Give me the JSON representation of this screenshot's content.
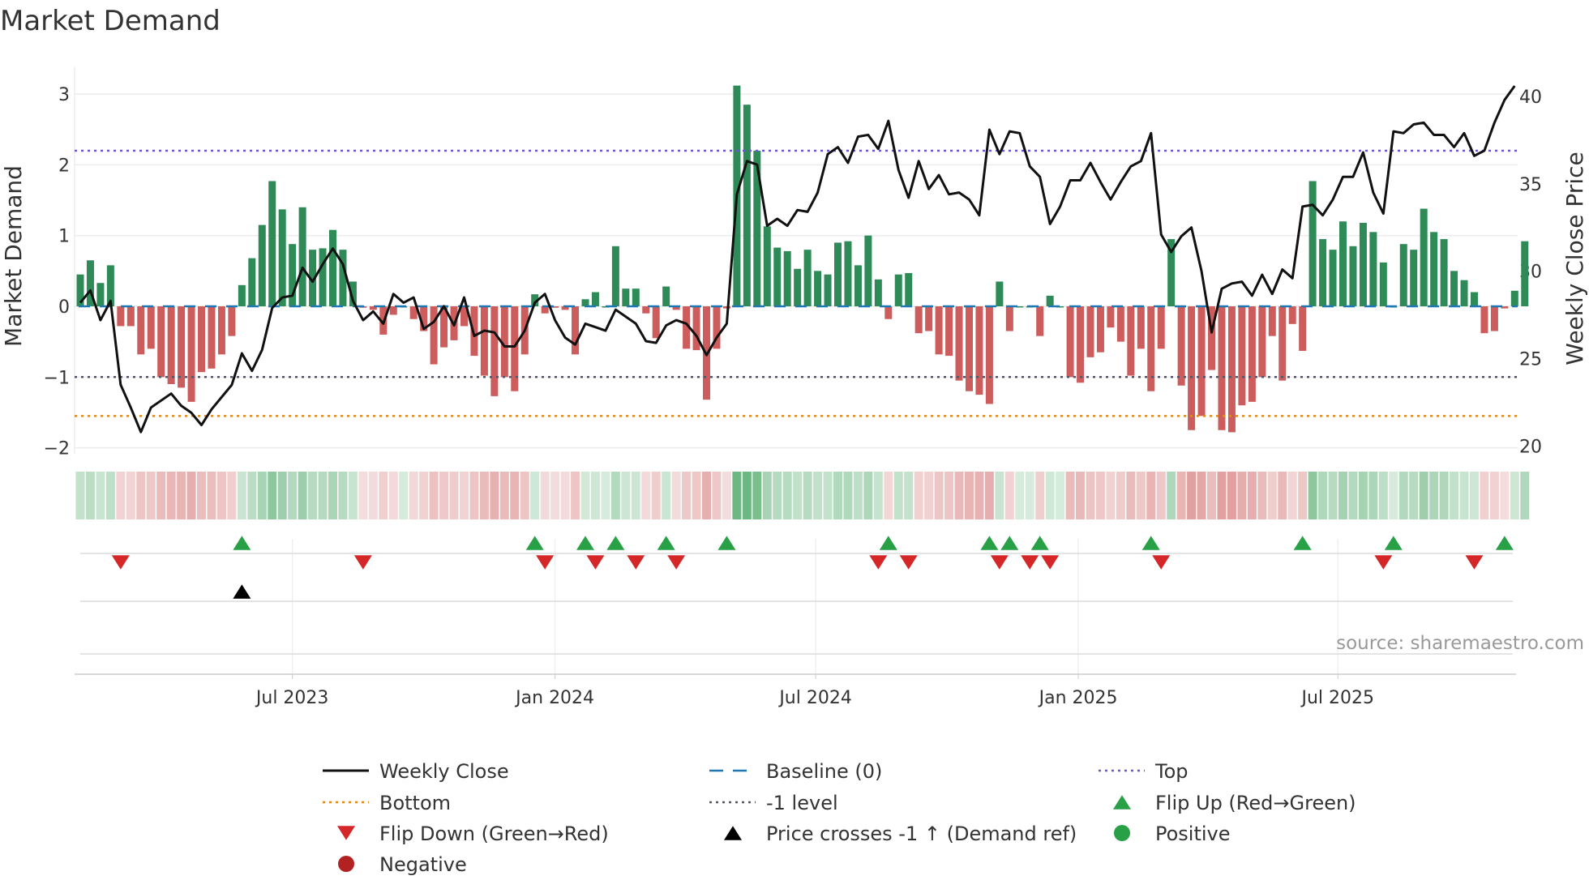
{
  "chart_data": {
    "type": "bar",
    "title": "Market Demand",
    "ylabel": "Market Demand",
    "y2label": "Weekly Close Price",
    "ylim": [
      -2.2,
      3.3
    ],
    "y2lim": [
      19.5,
      41
    ],
    "yticks": [
      3,
      2,
      1,
      0,
      -1,
      -2
    ],
    "ytick_labels": [
      "3",
      "2",
      "1",
      "0",
      "−1",
      "−2"
    ],
    "y2ticks": [
      40,
      35,
      30,
      25,
      20
    ],
    "y2tick_labels": [
      "40",
      "35",
      "30",
      "25",
      "20"
    ],
    "xticks": [
      {
        "label": "Jul 2023",
        "week": 21.0
      },
      {
        "label": "Jan 2024",
        "week": 47.0
      },
      {
        "label": "Jul 2024",
        "week": 72.8
      },
      {
        "label": "Jan 2025",
        "week": 98.8
      },
      {
        "label": "Jul 2025",
        "week": 124.5
      }
    ],
    "reference_lines": {
      "top": 2.2,
      "minus_one": -1,
      "bottom": -1.55,
      "baseline": 0
    },
    "demand": [
      0.45,
      0.65,
      0.33,
      0.58,
      -0.28,
      -0.28,
      -0.68,
      -0.6,
      -1.0,
      -1.1,
      -1.15,
      -1.35,
      -0.93,
      -0.88,
      -0.68,
      -0.42,
      0.3,
      0.68,
      1.15,
      1.77,
      1.37,
      0.88,
      1.4,
      0.8,
      0.82,
      1.08,
      0.8,
      0.35,
      -0.02,
      -0.05,
      -0.4,
      -0.12,
      0.0,
      -0.18,
      -0.35,
      -0.82,
      -0.58,
      -0.48,
      -0.28,
      -0.7,
      -0.98,
      -1.27,
      -1.0,
      -1.2,
      -0.68,
      0.17,
      -0.1,
      -0.02,
      -0.05,
      -0.68,
      0.1,
      0.2,
      0.0,
      0.85,
      0.25,
      0.25,
      -0.1,
      -0.45,
      0.28,
      -0.05,
      -0.6,
      -0.62,
      -1.32,
      -0.6,
      -0.03,
      3.12,
      2.85,
      2.2,
      1.13,
      0.83,
      0.78,
      0.53,
      0.8,
      0.5,
      0.45,
      0.9,
      0.92,
      0.58,
      1.0,
      0.38,
      -0.18,
      0.45,
      0.47,
      -0.38,
      -0.35,
      -0.68,
      -0.7,
      -1.05,
      -1.2,
      -1.25,
      -1.38,
      0.35,
      -0.35,
      0.0,
      0.0,
      -0.42,
      0.15,
      0.0,
      -1.0,
      -1.08,
      -0.72,
      -0.65,
      -0.3,
      -0.5,
      -0.98,
      -0.6,
      -1.2,
      -0.6,
      0.95,
      -1.12,
      -1.75,
      -1.55,
      -0.9,
      -1.75,
      -1.78,
      -1.4,
      -1.35,
      -1.0,
      -0.42,
      -1.05,
      -0.25,
      -0.63,
      1.77,
      0.95,
      0.8,
      1.2,
      0.85,
      1.18,
      1.05,
      0.62,
      0.0,
      0.88,
      0.8,
      1.38,
      1.05,
      0.95,
      0.5,
      0.37,
      0.2,
      -0.38,
      -0.35,
      -0.03,
      0.22,
      0.92
    ],
    "weekly_close": [
      28.2,
      28.9,
      27.2,
      28.3,
      23.5,
      22.2,
      20.8,
      22.2,
      22.6,
      23.0,
      22.3,
      21.9,
      21.2,
      22.1,
      22.8,
      23.5,
      25.3,
      24.3,
      25.5,
      27.9,
      28.5,
      28.6,
      30.2,
      29.4,
      30.4,
      31.3,
      30.4,
      28.3,
      27.2,
      27.7,
      27.0,
      28.7,
      28.2,
      28.5,
      26.7,
      27.1,
      28.0,
      26.9,
      28.5,
      26.3,
      26.6,
      26.5,
      25.7,
      25.7,
      26.6,
      28.2,
      28.7,
      27.2,
      26.2,
      25.8,
      27.0,
      26.8,
      26.6,
      27.8,
      27.4,
      27.0,
      26.0,
      25.9,
      26.9,
      27.2,
      27.0,
      26.3,
      25.2,
      26.2,
      27.0,
      34.4,
      36.3,
      36.1,
      32.6,
      33.0,
      32.6,
      33.5,
      33.4,
      34.5,
      36.7,
      37.1,
      36.2,
      37.7,
      37.8,
      37.0,
      38.6,
      35.8,
      34.2,
      36.3,
      34.7,
      35.5,
      34.4,
      34.5,
      34.1,
      33.2,
      38.1,
      36.7,
      38.0,
      37.9,
      36.0,
      35.4,
      32.7,
      33.7,
      35.2,
      35.2,
      36.2,
      35.1,
      34.1,
      35.1,
      36.0,
      36.3,
      37.9,
      32.1,
      31.1,
      32.0,
      32.5,
      30.0,
      26.5,
      29.0,
      29.3,
      29.4,
      28.6,
      29.8,
      28.7,
      30.1,
      29.6,
      33.7,
      33.8,
      33.2,
      34.1,
      35.4,
      35.4,
      36.8,
      34.5,
      33.3,
      38.0,
      37.9,
      38.4,
      38.5,
      37.8,
      37.8,
      37.1,
      37.9,
      36.6,
      36.9,
      38.5,
      39.8,
      40.6
    ],
    "flip_up_weeks": [
      16,
      45,
      50,
      53,
      58,
      64,
      80,
      90,
      92,
      95,
      106,
      121,
      130,
      141
    ],
    "flip_down_weeks": [
      4,
      28,
      46,
      51,
      55,
      59,
      79,
      82,
      91,
      94,
      96,
      107,
      129,
      138
    ],
    "price_cross_weeks": [
      16
    ],
    "legend": {
      "position": "bottom",
      "items": [
        {
          "label": "Weekly Close",
          "kind": "line",
          "color": "#111111"
        },
        {
          "label": "Baseline (0)",
          "kind": "dash",
          "color": "#1f77b4"
        },
        {
          "label": "Top",
          "kind": "dot",
          "color": "#6a5acd"
        },
        {
          "label": "Bottom",
          "kind": "dot",
          "color": "#e08a1e"
        },
        {
          "label": "-1 level",
          "kind": "dot",
          "color": "#555566"
        },
        {
          "label": "Flip Up (Red→Green)",
          "kind": "tri-up",
          "color": "#27a046"
        },
        {
          "label": "Flip Down (Green→Red)",
          "kind": "tri-down",
          "color": "#d62728"
        },
        {
          "label": "Price crosses -1 ↑ (Demand ref)",
          "kind": "tri-up",
          "color": "#000000"
        },
        {
          "label": "Positive",
          "kind": "circle",
          "color": "#27a046"
        },
        {
          "label": "Negative",
          "kind": "circle",
          "color": "#b22222"
        }
      ]
    },
    "source": "source: sharemaestro.com"
  },
  "colors": {
    "positive": "#2e8b57",
    "negative": "#cd5c5c",
    "top": "#6a5acd",
    "bottom": "#e08a1e",
    "minus_one": "#555566",
    "baseline": "#1f77b4",
    "price": "#111111"
  }
}
